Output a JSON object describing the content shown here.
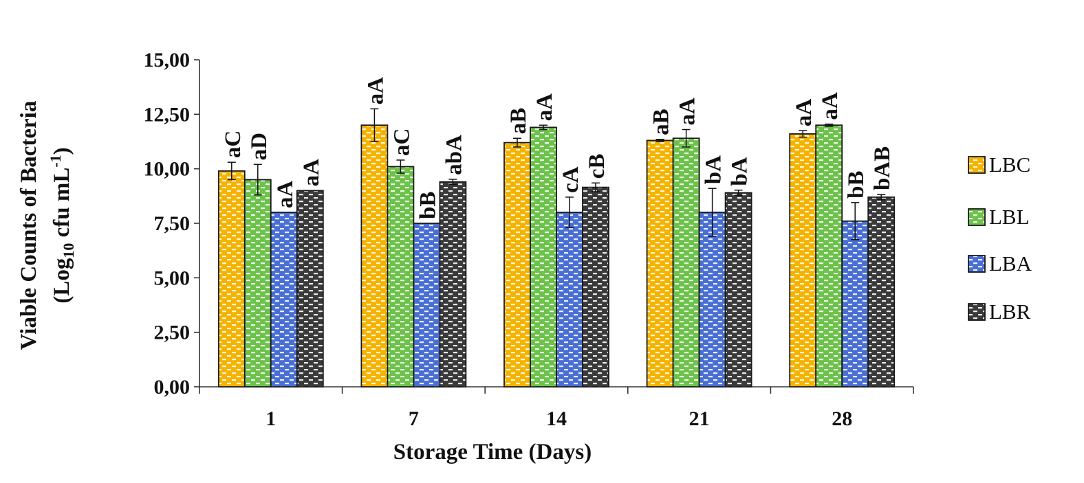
{
  "chart_data": {
    "type": "bar",
    "title": "",
    "xlabel": "Storage Time (Days)",
    "ylabel_line1": "Viable Counts of Bacteria",
    "ylabel_line2": {
      "prefix": "(Log",
      "sub": "10",
      "mid": " cfu mL",
      "sup": "-1",
      "suffix": ")"
    },
    "categories": [
      "1",
      "7",
      "14",
      "21",
      "28"
    ],
    "ylim": [
      0,
      15
    ],
    "yticks": [
      "0,00",
      "2,50",
      "5,00",
      "7,50",
      "10,00",
      "12,50",
      "15,00"
    ],
    "ytick_values": [
      0,
      2.5,
      5,
      7.5,
      10,
      12.5,
      15
    ],
    "grid": false,
    "legend_position": "right",
    "series": [
      {
        "name": "LBC",
        "color": "#F5B300",
        "values": [
          9.9,
          12.0,
          11.2,
          11.3,
          11.6
        ],
        "errors": [
          0.4,
          0.75,
          0.2,
          0.05,
          0.15
        ],
        "labels": [
          "aC",
          "aA",
          "aB",
          "aB",
          "aA"
        ]
      },
      {
        "name": "LBL",
        "color": "#6CC24A",
        "values": [
          9.5,
          10.1,
          11.9,
          11.4,
          12.0
        ],
        "errors": [
          0.7,
          0.3,
          0.1,
          0.4,
          0.05
        ],
        "labels": [
          "aD",
          "aC",
          "aA",
          "aA",
          "aA"
        ]
      },
      {
        "name": "LBA",
        "color": "#4A6FD4",
        "values": [
          8.0,
          7.5,
          8.0,
          8.0,
          7.6
        ],
        "errors": [
          0.0,
          0.0,
          0.7,
          1.1,
          0.85
        ],
        "labels": [
          "aA",
          "bB",
          "cA",
          "bA",
          "bB"
        ]
      },
      {
        "name": "LBR",
        "color": "#3A3A3A",
        "values": [
          9.0,
          9.4,
          9.15,
          8.9,
          8.7
        ],
        "errors": [
          0.0,
          0.12,
          0.2,
          0.12,
          0.12
        ],
        "labels": [
          "aA",
          "abA",
          "cB",
          "bA",
          "bAB"
        ]
      }
    ]
  }
}
